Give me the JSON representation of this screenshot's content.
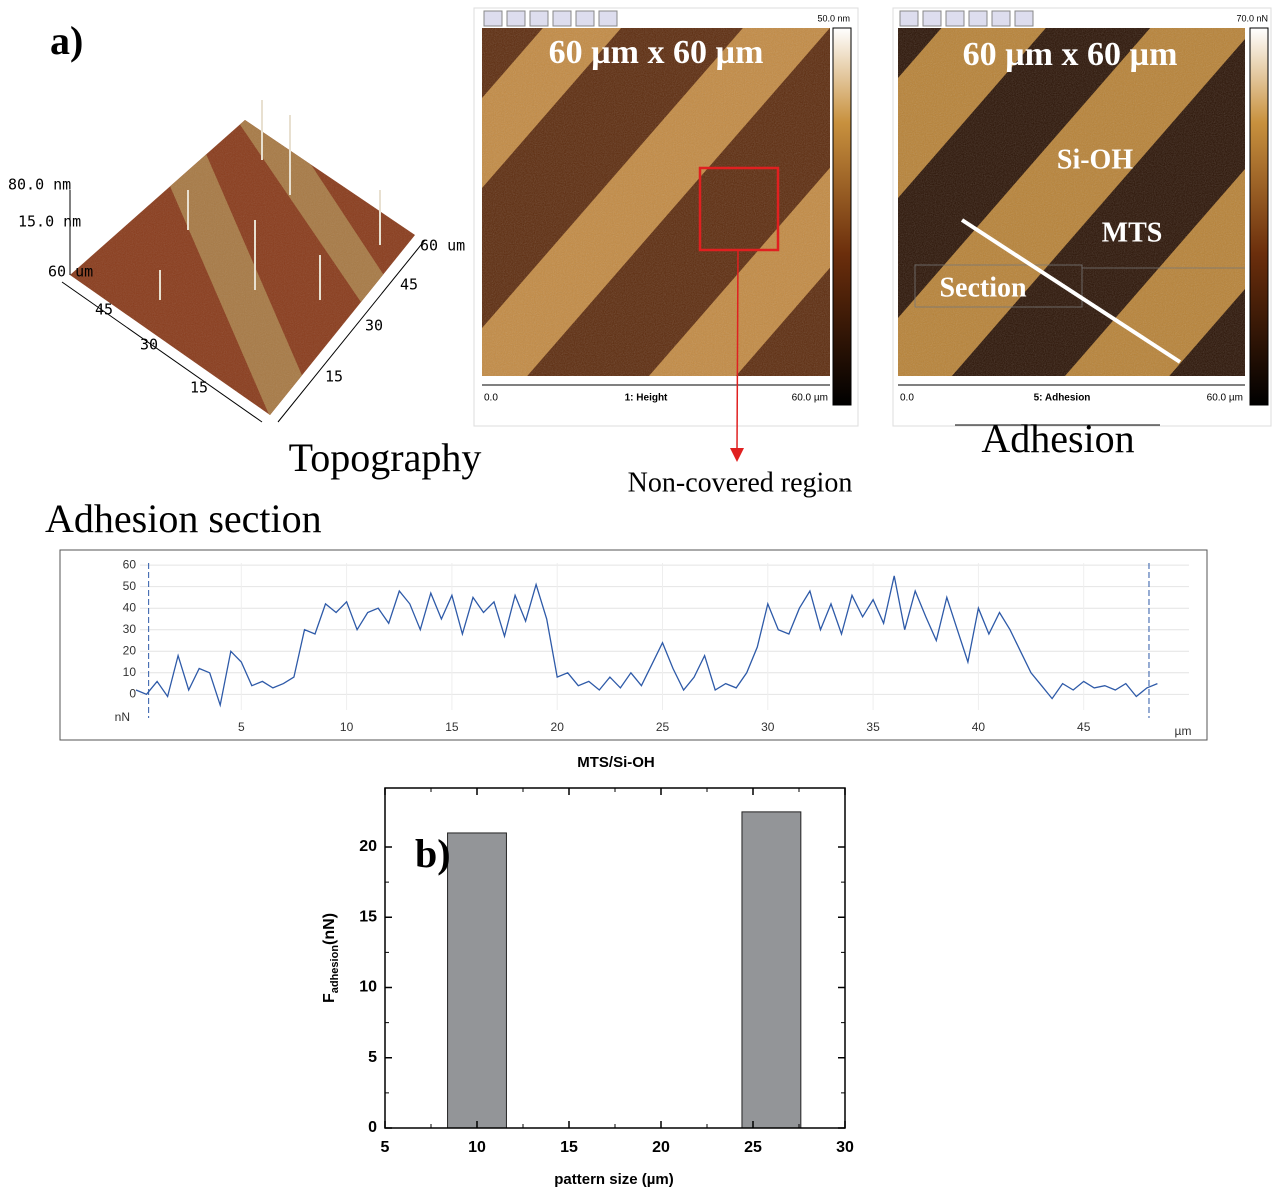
{
  "panel_a_label": "a)",
  "topography": {
    "title": "Topography",
    "z_labels": [
      "80.0 nm",
      "15.0 nm"
    ],
    "left_axis": [
      "60 um",
      "45",
      "30",
      "15"
    ],
    "right_axis": [
      "60 um",
      "45",
      "30",
      "15"
    ]
  },
  "height_image": {
    "overlay": "60 µm x 60 µm",
    "scale_max": "50.0 nm",
    "x_start": "0.0",
    "channel": "1: Height",
    "x_end": "60.0 µm",
    "callout": "Non-covered region"
  },
  "adhesion_image": {
    "overlay": "60 µm x 60 µm",
    "scale_max": "70.0 nN",
    "labels": [
      "Si-OH",
      "MTS",
      "Section"
    ],
    "x_start": "0.0",
    "channel": "5: Adhesion",
    "x_end": "60.0 µm",
    "title": "Adhesion"
  },
  "chart_data": [
    {
      "type": "line",
      "title": "Adhesion section",
      "y_unit": "nN",
      "x_unit": "µm",
      "color": "#2e5aa8",
      "grid": true,
      "xlim": [
        0,
        50
      ],
      "ylim": [
        -11,
        61
      ],
      "xticks": [
        5,
        10,
        15,
        20,
        25,
        30,
        35,
        40,
        45
      ],
      "yticks": [
        0,
        10,
        20,
        30,
        40,
        50,
        60
      ],
      "cursors_x": [
        0.6,
        48.1
      ],
      "x": [
        0,
        0.5,
        1,
        1.5,
        2,
        2.5,
        3,
        3.5,
        4,
        4.5,
        5,
        5.5,
        6,
        6.5,
        7,
        7.5,
        8,
        8.5,
        9,
        9.5,
        10,
        10.5,
        11,
        11.5,
        12,
        12.5,
        13,
        13.5,
        14,
        14.5,
        15,
        15.5,
        16,
        16.5,
        17,
        17.5,
        18,
        18.5,
        19,
        19.5,
        20,
        20.5,
        21,
        21.5,
        22,
        22.5,
        23,
        23.5,
        24,
        24.5,
        25,
        25.5,
        26,
        26.5,
        27,
        27.5,
        28,
        28.5,
        29,
        29.5,
        30,
        30.5,
        31,
        31.5,
        32,
        32.5,
        33,
        33.5,
        34,
        34.5,
        35,
        35.5,
        36,
        36.5,
        37,
        37.5,
        38,
        38.5,
        39,
        39.5,
        40,
        40.5,
        41,
        41.5,
        42,
        42.5,
        43,
        43.5,
        44,
        44.5,
        45,
        45.5,
        46,
        46.5,
        47,
        47.5,
        48,
        48.5
      ],
      "values": [
        2,
        0,
        6,
        -1,
        18,
        2,
        12,
        10,
        -5,
        20,
        15,
        4,
        6,
        3,
        5,
        8,
        30,
        28,
        42,
        38,
        43,
        30,
        38,
        40,
        33,
        48,
        42,
        30,
        47,
        35,
        46,
        28,
        45,
        38,
        43,
        27,
        46,
        34,
        51,
        35,
        8,
        10,
        4,
        6,
        2,
        8,
        3,
        10,
        4,
        14,
        24,
        12,
        2,
        8,
        18,
        2,
        5,
        3,
        10,
        22,
        42,
        30,
        28,
        40,
        48,
        30,
        42,
        28,
        46,
        36,
        44,
        33,
        55,
        30,
        48,
        36,
        25,
        45,
        30,
        15,
        40,
        28,
        38,
        30,
        20,
        10,
        4,
        -2,
        5,
        2,
        6,
        3,
        4,
        2,
        5,
        -1,
        3,
        5
      ]
    },
    {
      "type": "bar",
      "title": "MTS/Si-OH",
      "panel_label": "b)",
      "ylabel": "F",
      "ylabel_subscript": "adhesion",
      "ylabel_unit": "(nN)",
      "xlabel": "pattern size (µm)",
      "x": [
        10,
        26
      ],
      "values": [
        21,
        22.5
      ],
      "bar_width": 3.2,
      "color": "#939598",
      "xlim": [
        5,
        30
      ],
      "ylim": [
        0,
        24.2
      ],
      "xticks": [
        5,
        10,
        15,
        20,
        25,
        30
      ],
      "yticks": [
        0,
        5,
        10,
        15,
        20
      ]
    }
  ]
}
